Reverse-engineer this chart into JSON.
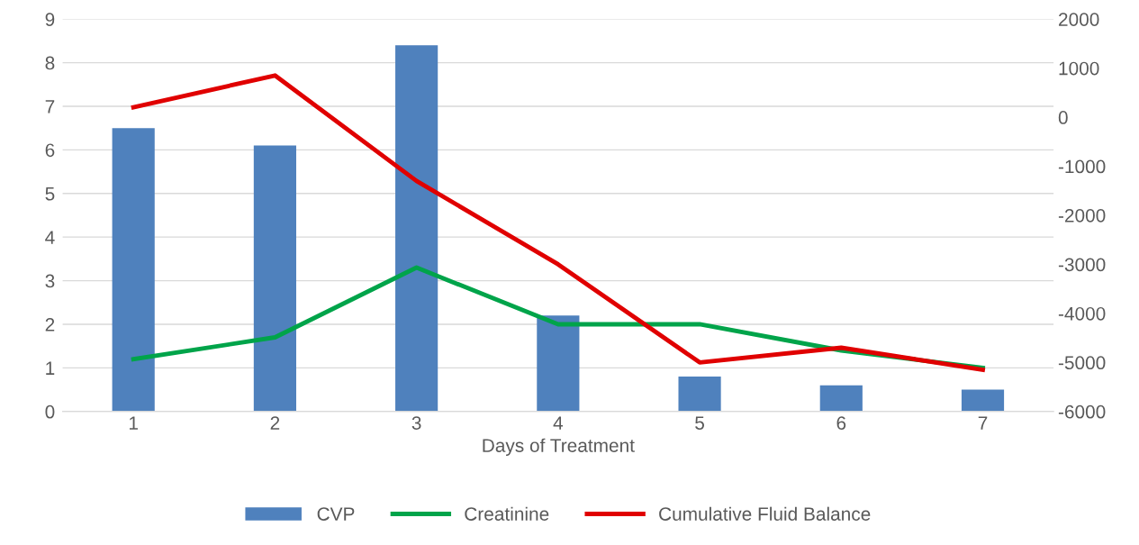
{
  "chart_data": {
    "type": "bar",
    "xlabel": "Days of Treatment",
    "categories": [
      "1",
      "2",
      "3",
      "4",
      "5",
      "6",
      "7"
    ],
    "series": [
      {
        "name": "CVP",
        "color": "#4f81bd",
        "values": [
          6.5,
          6.1,
          8.4,
          2.2,
          0.8,
          0.6,
          0.5
        ]
      },
      {
        "name": "Creatinine",
        "type": "line",
        "color": "#00a44a",
        "values": [
          1.2,
          1.7,
          3.3,
          2.0,
          2.0,
          1.4,
          1.0
        ]
      },
      {
        "name": "Cumulative Fluid Balance",
        "type": "line",
        "axis": "y2",
        "color": "#e00000",
        "values": [
          200,
          850,
          -1300,
          -3000,
          -5000,
          -4700,
          -5150
        ]
      }
    ],
    "ylim": [
      0,
      9
    ],
    "yticks": [
      0,
      1,
      2,
      3,
      4,
      5,
      6,
      7,
      8,
      9
    ],
    "y2lim": [
      -6000,
      2000
    ],
    "y2ticks": [
      -6000,
      -5000,
      -4000,
      -3000,
      -2000,
      -1000,
      0,
      1000,
      2000
    ],
    "grid": "y",
    "legend": "bottom"
  }
}
